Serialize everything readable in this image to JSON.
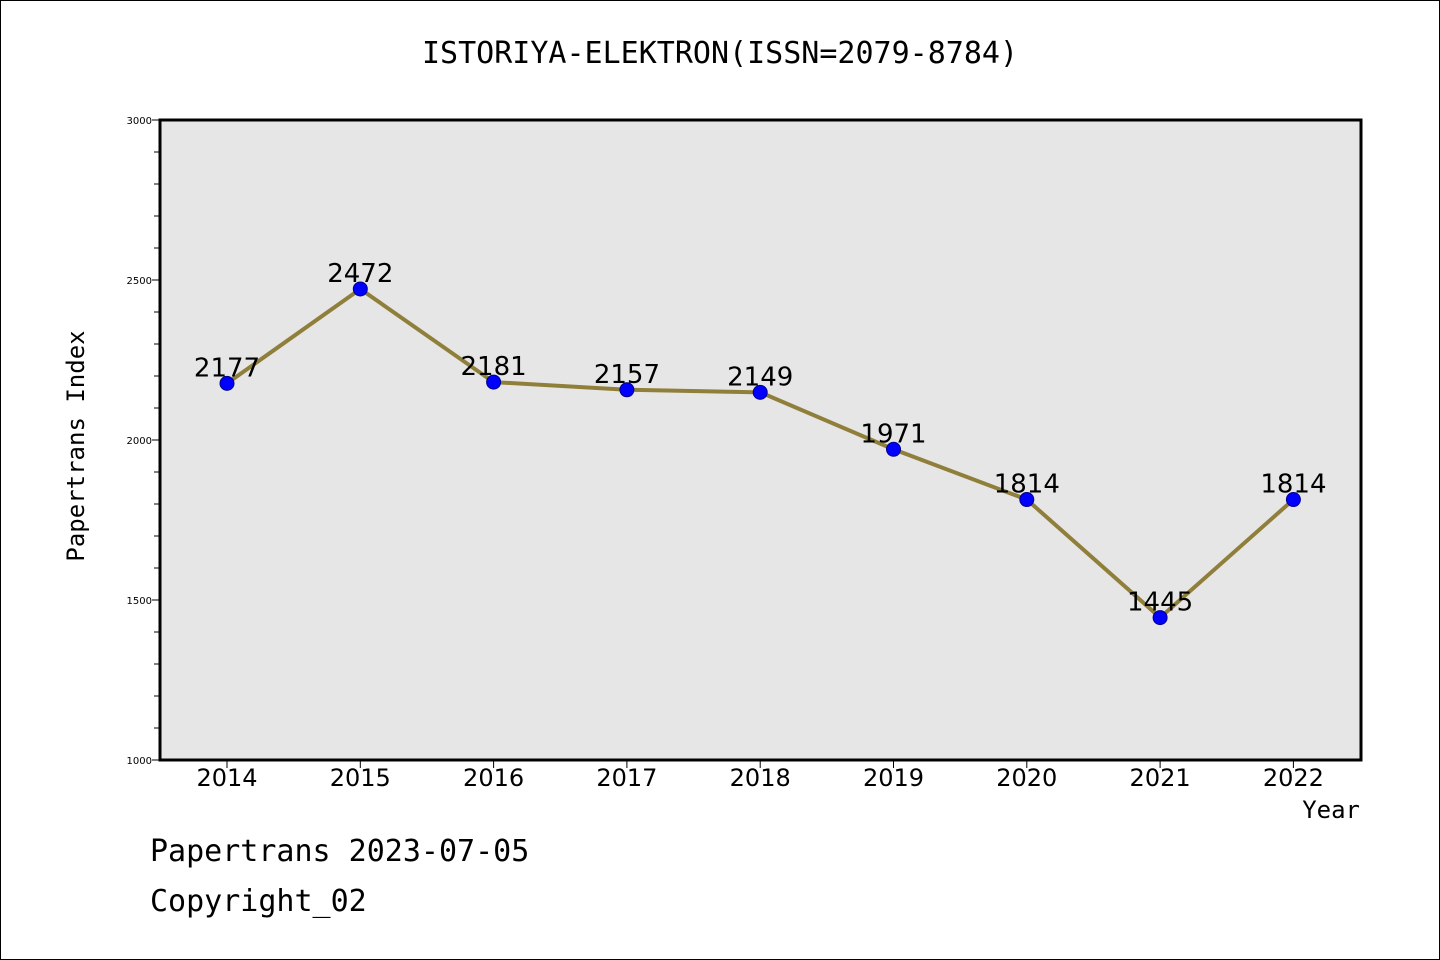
{
  "chart_data": {
    "type": "line",
    "title": "ISTORIYA-ELEKTRON(ISSN=2079-8784)",
    "xlabel": "Year",
    "ylabel": "Papertrans Index",
    "categories": [
      "2014",
      "2015",
      "2016",
      "2017",
      "2018",
      "2019",
      "2020",
      "2021",
      "2022"
    ],
    "series": [
      {
        "values": [
          2177,
          2472,
          2181,
          2157,
          2149,
          1971,
          1814,
          1445,
          1814
        ],
        "labels": [
          "2177",
          "2472",
          "2181",
          "2157",
          "2149",
          "1971",
          "1814",
          "1445",
          "1814"
        ]
      }
    ],
    "ylim": [
      1000,
      3000
    ],
    "yticks": [
      1000,
      1500,
      2000,
      2500,
      3000
    ],
    "ytick_labels": [
      "1000",
      "1500",
      "2000",
      "2500",
      "3000"
    ],
    "line_color": "#8f7f3a",
    "marker_color": "#0000ff",
    "plot_background": "#e6e6e6",
    "grid": false,
    "legend": "none"
  },
  "footer": {
    "line1": "Papertrans 2023-07-05",
    "line2": "Copyright_02"
  }
}
